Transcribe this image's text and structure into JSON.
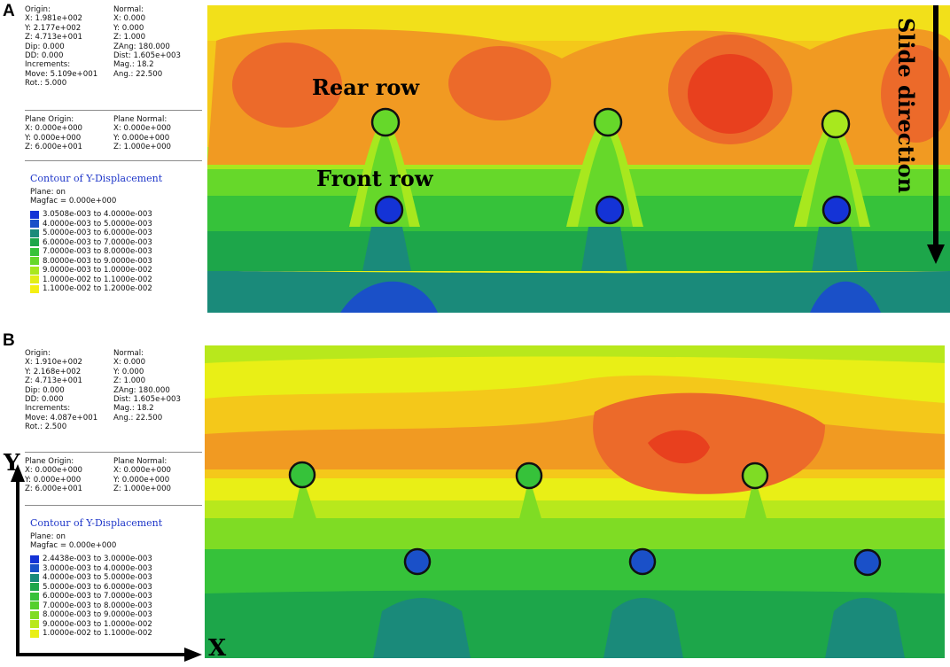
{
  "panel_a": {
    "letter": "A",
    "info": {
      "col1": [
        "Origin:",
        "X: 1.981e+002",
        "Y: 2.177e+002",
        "Z: 4.713e+001",
        "Dip:  0.000",
        "DD:  0.000",
        "Increments:",
        "Move: 5.109e+001",
        "Rot.:  5.000"
      ],
      "col2": [
        "Normal:",
        "X:  0.000",
        "Y:  0.000",
        "Z:  1.000",
        "ZAng: 180.000",
        "Dist: 1.605e+003",
        "Mag.:     18.2",
        "Ang.:  22.500",
        ""
      ]
    },
    "plane": {
      "col1": [
        "Plane Origin:",
        "X: 0.000e+000",
        "Y: 0.000e+000",
        "Z: 6.000e+001"
      ],
      "col2": [
        "Plane Normal:",
        "X: 0.000e+000",
        "Y: 0.000e+000",
        "Z: 1.000e+000"
      ]
    },
    "legend_title": "Contour of Y-Displacement",
    "legend_sub": [
      "Plane: on",
      "Magfac =  0.000e+000"
    ],
    "legend_items": [
      {
        "label": "3.0508e-003 to  4.0000e-003",
        "color": "#1433d6"
      },
      {
        "label": "4.0000e-003 to  5.0000e-003",
        "color": "#1a50c8"
      },
      {
        "label": "5.0000e-003 to  6.0000e-003",
        "color": "#1a8a7a"
      },
      {
        "label": "6.0000e-003 to  7.0000e-003",
        "color": "#1da64a"
      },
      {
        "label": "7.0000e-003 to  8.0000e-003",
        "color": "#36c23a"
      },
      {
        "label": "8.0000e-003 to  9.0000e-003",
        "color": "#66d82a"
      },
      {
        "label": "9.0000e-003 to  1.0000e-002",
        "color": "#a8e81e"
      },
      {
        "label": "1.0000e-002 to  1.1000e-002",
        "color": "#e2ee18"
      },
      {
        "label": "1.1000e-002 to  1.2000e-002",
        "color": "#f4ef14"
      }
    ],
    "rear_row": "Rear row",
    "front_row": "Front row",
    "slide_direction": "Slide direction"
  },
  "panel_b": {
    "letter": "B",
    "info": {
      "col1": [
        "Origin:",
        "X: 1.910e+002",
        "Y: 2.168e+002",
        "Z: 4.713e+001",
        "Dip:  0.000",
        "DD:  0.000",
        "Increments:",
        "Move: 4.087e+001",
        "Rot.:  2.500"
      ],
      "col2": [
        "Normal:",
        "X:  0.000",
        "Y:  0.000",
        "Z:  1.000",
        "ZAng: 180.000",
        "Dist: 1.605e+003",
        "Mag.:     18.2",
        "Ang.:  22.500",
        ""
      ]
    },
    "plane": {
      "col1": [
        "Plane Origin:",
        "X: 0.000e+000",
        "Y: 0.000e+000",
        "Z: 6.000e+001"
      ],
      "col2": [
        "Plane Normal:",
        "X: 0.000e+000",
        "Y: 0.000e+000",
        "Z: 1.000e+000"
      ]
    },
    "legend_title": "Contour of Y-Displacement",
    "legend_sub": [
      "Plane: on",
      "Magfac =  0.000e+000"
    ],
    "legend_items": [
      {
        "label": "2.4438e-003 to  3.0000e-003",
        "color": "#1433d6"
      },
      {
        "label": "3.0000e-003 to  4.0000e-003",
        "color": "#1a50c8"
      },
      {
        "label": "4.0000e-003 to  5.0000e-003",
        "color": "#1a8a7a"
      },
      {
        "label": "5.0000e-003 to  6.0000e-003",
        "color": "#1da64a"
      },
      {
        "label": "6.0000e-003 to  7.0000e-003",
        "color": "#36c23a"
      },
      {
        "label": "7.0000e-003 to  8.0000e-003",
        "color": "#55cf2c"
      },
      {
        "label": "8.0000e-003 to  9.0000e-003",
        "color": "#7fdc24"
      },
      {
        "label": "9.0000e-003 to  1.0000e-002",
        "color": "#b8e81c"
      },
      {
        "label": "1.0000e-002 to  1.1000e-002",
        "color": "#e9ef16"
      }
    ],
    "axis_x": "X",
    "axis_y": "Y"
  }
}
